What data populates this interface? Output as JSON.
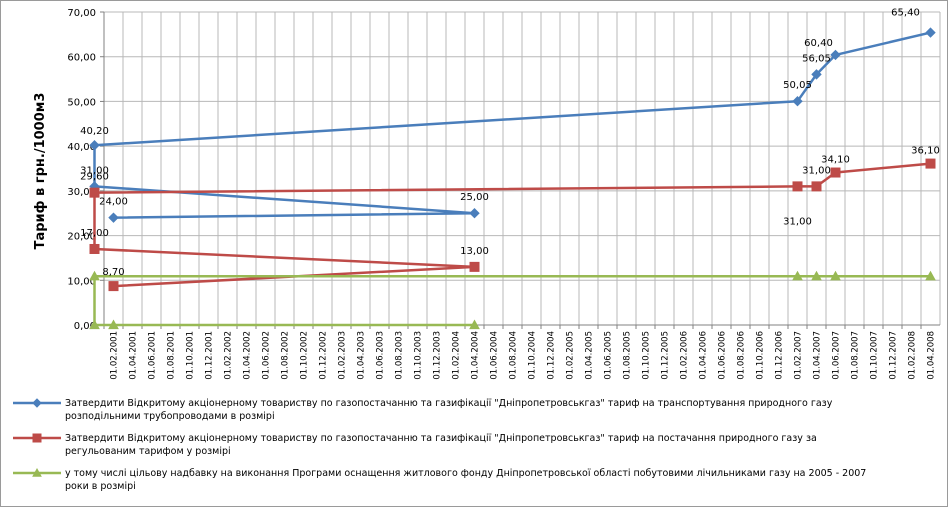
{
  "chart_data": {
    "type": "line",
    "ylabel": "Тариф в грн./1000м3",
    "ylim": [
      0,
      70
    ],
    "yticks": [
      "0,00",
      "10,00",
      "20,00",
      "30,00",
      "40,00",
      "50,00",
      "60,00",
      "70,00"
    ],
    "grid": true,
    "legend_position": "bottom",
    "categories": [
      "01.02.2001",
      "01.04.2001",
      "01.06.2001",
      "01.08.2001",
      "01.10.2001",
      "01.12.2001",
      "01.02.2002",
      "01.04.2002",
      "01.06.2002",
      "01.08.2002",
      "01.10.2002",
      "01.12.2002",
      "01.02.2003",
      "01.04.2003",
      "01.06.2003",
      "01.08.2003",
      "01.10.2003",
      "01.12.2003",
      "01.02.2004",
      "01.04.2004",
      "01.06.2004",
      "01.08.2004",
      "01.10.2004",
      "01.12.2004",
      "01.02.2005",
      "01.04.2005",
      "01.06.2005",
      "01.08.2005",
      "01.10.2005",
      "01.12.2005",
      "01.02.2006",
      "01.04.2006",
      "01.06.2006",
      "01.08.2006",
      "01.10.2006",
      "01.12.2006",
      "01.02.2007",
      "01.04.2007",
      "01.06.2007",
      "01.08.2007",
      "01.10.2007",
      "01.12.2007",
      "01.02.2008",
      "01.04.2008"
    ],
    "series": [
      {
        "name": "Затвердити Відкритому акціонерному товариству по газопостачанню та газифікації \"Дніпропетровськгаз\" тариф на транспортування природного газу розподільними трубопроводами в розмірі",
        "legend_lines": [
          "Затвердити Відкритому акціонерному товариству по газопостачанню та газифікації \"Дніпропетровськгаз\" тариф на транспортування природного газу",
          "розподільними трубопроводами в розмірі"
        ],
        "color": "#4a7ebb",
        "marker": "diamond",
        "points": [
          {
            "x": "01.02.2001",
            "y": 24.0,
            "label": "24,00"
          },
          {
            "x": "01.04.2004",
            "y": 25.0,
            "label": "25,00"
          },
          {
            "x": "01.05.2005",
            "y": 31.0,
            "label": "31,00"
          },
          {
            "x": "01.05.2006",
            "y": 40.2,
            "label": "40,20"
          },
          {
            "x": "01.02.2007",
            "y": 50.05,
            "label": "50,05"
          },
          {
            "x": "01.04.2007",
            "y": 56.05,
            "label": "56,05"
          },
          {
            "x": "01.06.2007",
            "y": 60.4,
            "label": "60,40"
          },
          {
            "x": "01.04.2008",
            "y": 65.4,
            "label": "65,40"
          }
        ]
      },
      {
        "name": "Затвердити Відкритому акціонерному товариству по газопостачанню та газифікації \"Дніпропетровськгаз\" тариф на постачання природного газу за регульованим тарифом у розмірі",
        "legend_lines": [
          "Затвердити Відкритому акціонерному товариству по газопостачанню та газифікації \"Дніпропетровськгаз\" тариф на постачання природного газу за",
          "регульованим тарифом у розмірі"
        ],
        "color": "#be4b48",
        "marker": "square",
        "points": [
          {
            "x": "01.02.2001",
            "y": 8.7,
            "label": "8,70"
          },
          {
            "x": "01.04.2004",
            "y": 13.0,
            "label": "13,00"
          },
          {
            "x": "01.05.2005",
            "y": 17.0,
            "label": "17,00"
          },
          {
            "x": "01.05.2006",
            "y": 29.6,
            "label": "29,60"
          },
          {
            "x": "01.02.2007",
            "y": 31.0,
            "label": ""
          },
          {
            "x": "01.04.2007",
            "y": 31.0,
            "label": "31,00"
          },
          {
            "x": "01.06.2007",
            "y": 34.1,
            "label": "34,10"
          },
          {
            "x": "01.04.2008",
            "y": 36.1,
            "label": "36,10"
          }
        ],
        "extra_labels": [
          {
            "x": "01.02.2007",
            "y": 31.0,
            "label": "31,00",
            "placement": "below"
          }
        ]
      },
      {
        "name": "у тому числі цільову надбавку на виконання Програми оснащення житлового фонду Дніпропетровської області побутовими лічильниками газу на 2005 - 2007 роки в розмірі",
        "legend_lines": [
          "у тому числі цільову надбавку на виконання Програми оснащення житлового фонду Дніпропетровської області побутовими лічильниками газу на 2005 - 2007",
          "роки в розмірі"
        ],
        "color": "#98b954",
        "marker": "triangle",
        "points": [
          {
            "x": "01.02.2001",
            "y": 0.0,
            "label": ""
          },
          {
            "x": "01.04.2004",
            "y": 0.0,
            "label": ""
          },
          {
            "x": "01.05.2005",
            "y": 0.0,
            "label": ""
          },
          {
            "x": "01.05.2006",
            "y": 10.9,
            "label": ""
          },
          {
            "x": "01.02.2007",
            "y": 10.9,
            "label": ""
          },
          {
            "x": "01.04.2007",
            "y": 10.9,
            "label": ""
          },
          {
            "x": "01.06.2007",
            "y": 10.9,
            "label": ""
          },
          {
            "x": "01.04.2008",
            "y": 10.9,
            "label": ""
          }
        ]
      }
    ]
  }
}
